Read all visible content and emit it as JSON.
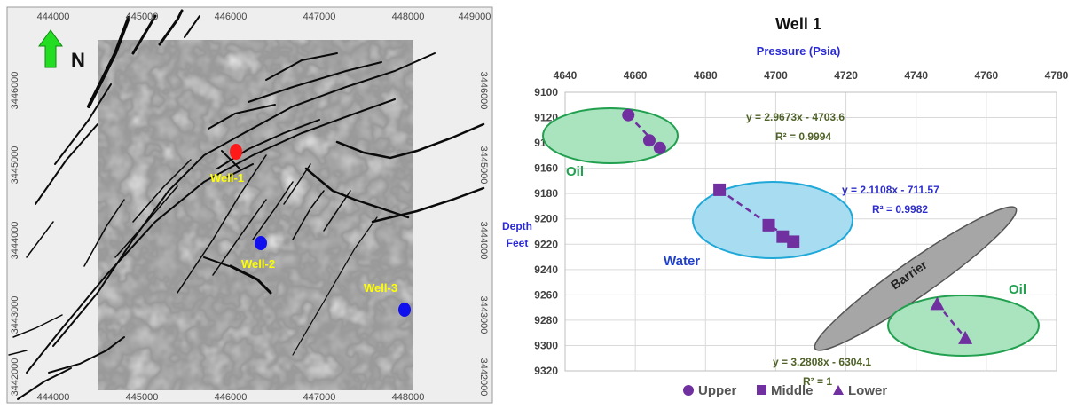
{
  "map": {
    "north_label": "N",
    "x_ticks": [
      "444000",
      "445000",
      "446000",
      "447000",
      "448000",
      "449000"
    ],
    "y_ticks_left": [
      "3446000",
      "3445000",
      "3444000",
      "3443000",
      "3442000"
    ],
    "y_ticks_right": [
      "3446000",
      "3445000",
      "3444000",
      "3443000",
      "3442000"
    ],
    "wells": [
      {
        "name": "Well-1",
        "color": "#ff1a1a"
      },
      {
        "name": "Well-2",
        "color": "#1010ee"
      },
      {
        "name": "Well-3",
        "color": "#1010ee"
      }
    ],
    "label_color": "#ffff00",
    "arrow_color": "#22dd22"
  },
  "chart_data": {
    "type": "scatter",
    "title": "Well 1",
    "xlabel": "Pressure (Psia)",
    "ylabel_line1": "Depth",
    "ylabel_line2": "Feet",
    "xlim": [
      4640,
      4780
    ],
    "ylim": [
      9100,
      9320
    ],
    "x_axis_position": "top",
    "y_axis_inverted": true,
    "grid": true,
    "x_ticks": [
      4640,
      4660,
      4680,
      4700,
      4720,
      4740,
      4760,
      4780
    ],
    "y_ticks": [
      9100,
      9120,
      9140,
      9160,
      9180,
      9200,
      9220,
      9240,
      9260,
      9280,
      9300,
      9320
    ],
    "series": [
      {
        "name": "Upper",
        "marker": "circle",
        "color": "#7030a0",
        "points": [
          [
            4658,
            9118
          ],
          [
            4664,
            9138
          ],
          [
            4667,
            9144
          ]
        ]
      },
      {
        "name": "Middle",
        "marker": "square",
        "color": "#7030a0",
        "points": [
          [
            4684,
            9177
          ],
          [
            4698,
            9205
          ],
          [
            4702,
            9214
          ],
          [
            4705,
            9218
          ]
        ]
      },
      {
        "name": "Lower",
        "marker": "triangle",
        "color": "#7030a0",
        "points": [
          [
            4746,
            9267
          ],
          [
            4754,
            9294
          ]
        ]
      }
    ],
    "trendlines": [
      {
        "series": "Upper",
        "equation": "y = 2.9673x - 4703.6",
        "r2": "R² = 0.9994",
        "color": "#4f6228"
      },
      {
        "series": "Middle",
        "equation": "y = 2.1108x - 711.57",
        "r2": "R² = 0.9982",
        "color": "#2e2ecc"
      },
      {
        "series": "Lower",
        "equation": "y = 3.2808x - 6304.1",
        "r2": "R² = 1",
        "color": "#4f6228"
      }
    ],
    "zones": [
      {
        "label": "Oil",
        "fill": "#a9e4bf",
        "stroke": "#22a050",
        "label_color": "#22a050"
      },
      {
        "label": "Water",
        "fill": "#a8dcf0",
        "stroke": "#1fa8d8",
        "label_color": "#1f3fcc"
      },
      {
        "label": "Barrier",
        "fill": "#a6a6a6",
        "stroke": "#555555",
        "label_color": "#222222"
      },
      {
        "label": "Oil",
        "fill": "#a9e4bf",
        "stroke": "#22a050",
        "label_color": "#22a050"
      }
    ],
    "legend_position": "bottom",
    "legend": [
      "Upper",
      "Middle",
      "Lower"
    ],
    "title_color": "#111111",
    "axis_label_color": "#2b2bd6"
  }
}
